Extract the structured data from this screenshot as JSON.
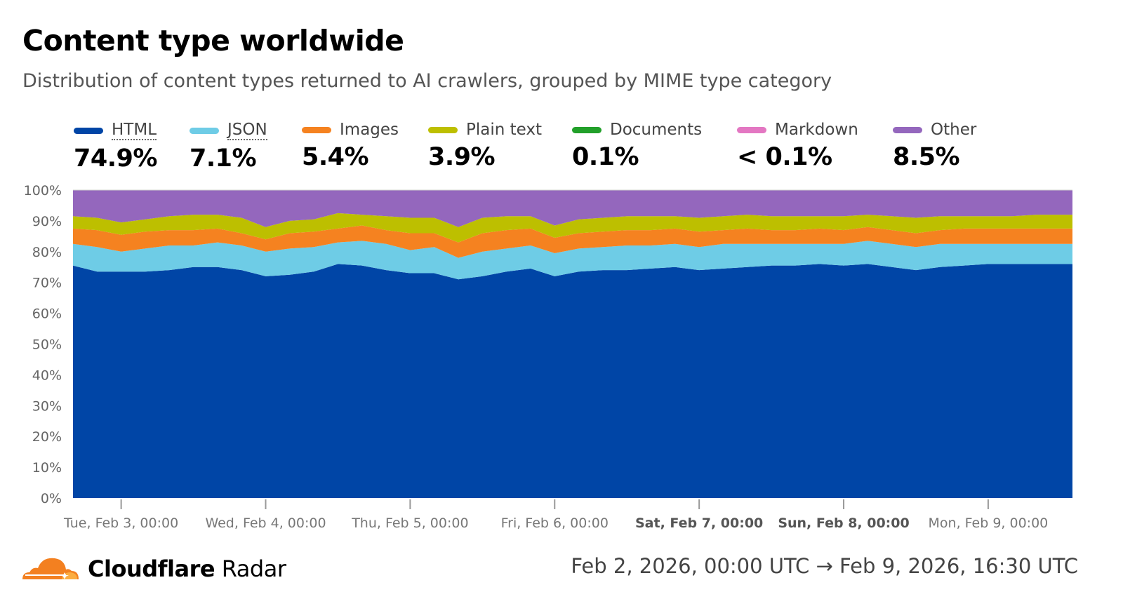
{
  "header": {
    "title": "Content type worldwide",
    "subtitle": "Distribution of content types returned to AI crawlers, grouped by MIME type category"
  },
  "legend": [
    {
      "label": "HTML",
      "value": "74.9%",
      "color": "#0045A6",
      "dotted": true
    },
    {
      "label": "JSON",
      "value": "7.1%",
      "color": "#6ECCE6",
      "dotted": true
    },
    {
      "label": "Images",
      "value": "5.4%",
      "color": "#F58220",
      "dotted": false
    },
    {
      "label": "Plain text",
      "value": "3.9%",
      "color": "#BDBF00",
      "dotted": false
    },
    {
      "label": "Documents",
      "value": "0.1%",
      "color": "#22A02A",
      "dotted": false
    },
    {
      "label": "Markdown",
      "value": "< 0.1%",
      "color": "#E377C2",
      "dotted": false
    },
    {
      "label": "Other",
      "value": "8.5%",
      "color": "#9467BD",
      "dotted": false
    }
  ],
  "chart_data": {
    "type": "area",
    "stacked": true,
    "ylim": [
      0,
      100
    ],
    "y_ticks": [
      "0%",
      "10%",
      "20%",
      "30%",
      "40%",
      "50%",
      "60%",
      "70%",
      "80%",
      "90%",
      "100%"
    ],
    "x_ticks": [
      {
        "label": "Tue, Feb 3, 00:00",
        "at": "2026-02-03T00:00",
        "bold": false
      },
      {
        "label": "Wed, Feb 4, 00:00",
        "at": "2026-02-04T00:00",
        "bold": false
      },
      {
        "label": "Thu, Feb 5, 00:00",
        "at": "2026-02-05T00:00",
        "bold": false
      },
      {
        "label": "Fri, Feb 6, 00:00",
        "at": "2026-02-06T00:00",
        "bold": false
      },
      {
        "label": "Sat, Feb 7, 00:00",
        "at": "2026-02-07T00:00",
        "bold": true
      },
      {
        "label": "Sun, Feb 8, 00:00",
        "at": "2026-02-08T00:00",
        "bold": true
      },
      {
        "label": "Mon, Feb 9, 00:00",
        "at": "2026-02-09T00:00",
        "bold": false
      }
    ],
    "x_range": [
      "2026-02-02T16:00",
      "2026-02-09T14:00"
    ],
    "x": [
      "2026-02-02T16:00",
      "2026-02-02T20:00",
      "2026-02-03T00:00",
      "2026-02-03T04:00",
      "2026-02-03T08:00",
      "2026-02-03T12:00",
      "2026-02-03T16:00",
      "2026-02-03T20:00",
      "2026-02-04T00:00",
      "2026-02-04T04:00",
      "2026-02-04T08:00",
      "2026-02-04T12:00",
      "2026-02-04T16:00",
      "2026-02-04T20:00",
      "2026-02-05T00:00",
      "2026-02-05T04:00",
      "2026-02-05T08:00",
      "2026-02-05T12:00",
      "2026-02-05T16:00",
      "2026-02-05T20:00",
      "2026-02-06T00:00",
      "2026-02-06T04:00",
      "2026-02-06T08:00",
      "2026-02-06T12:00",
      "2026-02-06T16:00",
      "2026-02-06T20:00",
      "2026-02-07T00:00",
      "2026-02-07T04:00",
      "2026-02-07T08:00",
      "2026-02-07T12:00",
      "2026-02-07T16:00",
      "2026-02-07T20:00",
      "2026-02-08T00:00",
      "2026-02-08T04:00",
      "2026-02-08T08:00",
      "2026-02-08T12:00",
      "2026-02-08T16:00",
      "2026-02-08T20:00",
      "2026-02-09T00:00",
      "2026-02-09T04:00",
      "2026-02-09T08:00",
      "2026-02-09T14:00"
    ],
    "series": [
      {
        "name": "HTML",
        "color": "#0045A6",
        "values": [
          75.5,
          73.5,
          73.5,
          73.5,
          74,
          75,
          75,
          74,
          72,
          72.5,
          73.5,
          76,
          75.5,
          74,
          73,
          73,
          71,
          72,
          73.5,
          74.5,
          72,
          73.5,
          74,
          74,
          74.5,
          75,
          74,
          74.5,
          75,
          75.5,
          75.5,
          76,
          75.5,
          76,
          75,
          74,
          75,
          75.5,
          76,
          76,
          76,
          76
        ]
      },
      {
        "name": "JSON",
        "color": "#6ECCE6",
        "values": [
          7,
          8,
          6.5,
          7.5,
          8,
          7,
          8,
          8,
          8,
          8.5,
          8,
          7,
          8,
          8.5,
          7.5,
          8.5,
          7,
          8,
          7.5,
          7.5,
          7.5,
          7.5,
          7.5,
          8,
          7.5,
          7.5,
          7.5,
          8,
          7.5,
          7,
          7,
          6.5,
          7,
          7.5,
          7.5,
          7.5,
          7.5,
          7,
          6.5,
          6.5,
          6.5,
          6.5
        ]
      },
      {
        "name": "Images",
        "color": "#F58220",
        "values": [
          5,
          5.5,
          5.5,
          5.5,
          5,
          5,
          4.5,
          4,
          4,
          5,
          5,
          4.5,
          5,
          4.5,
          5.5,
          4.5,
          5,
          6,
          6,
          5.5,
          5,
          5,
          5,
          5,
          5,
          5,
          5,
          4.5,
          5,
          4.5,
          4.5,
          5,
          4.5,
          4.5,
          4.5,
          4.5,
          4.5,
          5,
          5,
          5,
          5,
          5
        ]
      },
      {
        "name": "Plain text",
        "color": "#BDBF00",
        "values": [
          4,
          4,
          4,
          4,
          4.5,
          5,
          4.5,
          5,
          4,
          4,
          4,
          5,
          3.5,
          4.5,
          5,
          5,
          5,
          5,
          4.5,
          4,
          4,
          4.5,
          4.5,
          4.5,
          4.5,
          4,
          4.5,
          4.5,
          4.5,
          4.5,
          4.5,
          4,
          4.5,
          4,
          4.5,
          5,
          4.5,
          4,
          4,
          4,
          4.5,
          4.5
        ]
      },
      {
        "name": "Other",
        "color": "#9467BD",
        "values": [
          8.5,
          9,
          10.5,
          9.5,
          8.5,
          8,
          8,
          9,
          12,
          10,
          9.5,
          7.5,
          8,
          8.5,
          9,
          9,
          12,
          9,
          8.5,
          8.5,
          11.5,
          9.5,
          9,
          8.5,
          8.5,
          8.5,
          9,
          8.5,
          8,
          8.5,
          8.5,
          8.5,
          8.5,
          8,
          8.5,
          9,
          8.5,
          8.5,
          8.5,
          8.5,
          8,
          8
        ]
      }
    ]
  },
  "footer": {
    "brand_bold": "Cloudflare",
    "brand_regular": "Radar",
    "date_range": "Feb 2, 2026, 00:00 UTC → Feb 9, 2026, 16:30 UTC",
    "logo_color": "#F38020"
  }
}
